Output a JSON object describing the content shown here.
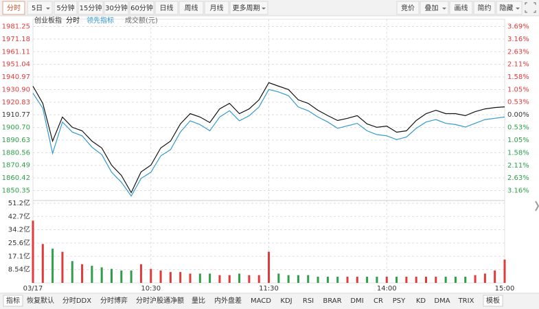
{
  "toolbar": {
    "left": [
      "分时",
      "5日",
      "5分钟",
      "15分钟",
      "30分钟",
      "60分钟",
      "日线",
      "周线",
      "月线",
      "更多周期"
    ],
    "right": [
      "竞价",
      "叠加",
      "画线",
      "简约",
      "隐藏"
    ]
  },
  "chart_data": [
    {
      "type": "line",
      "title": "创业板指",
      "x": [
        0,
        5,
        10,
        15,
        20,
        25,
        30,
        35,
        40,
        45,
        50,
        55,
        60,
        65,
        70,
        75,
        80,
        85,
        90,
        95,
        100,
        105,
        110,
        115,
        120,
        125,
        130,
        135,
        140,
        145,
        150,
        155,
        160,
        165,
        170,
        175,
        180,
        185,
        190,
        195,
        200,
        205,
        210,
        215,
        220,
        225,
        230,
        235,
        240
      ],
      "xlim": [
        0,
        240
      ],
      "ylim": [
        1845,
        1987
      ],
      "yticks": [
        1981.25,
        1971.18,
        1961.11,
        1951.04,
        1940.97,
        {
          "value": 1930.9,
          "label": "1930.90"
        },
        1920.83,
        1910.77,
        {
          "value": 1900.7,
          "label": "1900.70"
        },
        1890.63,
        1880.56,
        1870.49,
        1860.42,
        1850.35
      ],
      "y2lim": [
        -3.44,
        3.99
      ],
      "y2ticks": [
        {
          "value": 3.69,
          "label": "3.69%"
        },
        {
          "value": 3.16,
          "label": "3.16%"
        },
        {
          "value": 2.63,
          "label": "2.63%"
        },
        {
          "value": 2.11,
          "label": "2.11%"
        },
        {
          "value": 1.58,
          "label": "1.58%"
        },
        {
          "value": 1.05,
          "label": "1.05%"
        },
        {
          "value": 0.53,
          "label": "0.53%"
        },
        {
          "value": 0,
          "label": "0.00%"
        },
        {
          "value": -0.53,
          "label": "0.53%"
        },
        {
          "value": -1.05,
          "label": "1.05%"
        },
        {
          "value": -1.58,
          "label": "1.58%"
        },
        {
          "value": -2.11,
          "label": "2.11%"
        },
        {
          "value": -2.63,
          "label": "2.63%"
        },
        {
          "value": -3.16,
          "label": "3.16%"
        }
      ],
      "up_color": "#e03a3a",
      "down_color": "#2e9e4a",
      "series": [
        {
          "name": "分时",
          "color": "#111111",
          "values": [
            1933.6,
            1919.9,
            1889.8,
            1909,
            1900.8,
            1898,
            1889.8,
            1884.3,
            1870.6,
            1862.4,
            1848.7,
            1865.2,
            1870.6,
            1884.3,
            1889.8,
            1903.5,
            1911.7,
            1909,
            1904.6,
            1915.5,
            1919.9,
            1911.7,
            1915.5,
            1922.7,
            1936.4,
            1933.6,
            1930.9,
            1922.7,
            1919.9,
            1914.4,
            1910.1,
            1906.2,
            1908,
            1910.1,
            1903.5,
            1900.8,
            1901.8,
            1896.9,
            1898,
            1906.2,
            1911.7,
            1914.4,
            1911.7,
            1911.7,
            1910.1,
            1913.3,
            1915.5,
            1916.6,
            1917.1
          ]
        },
        {
          "name": "领先指标",
          "color": "#3399cc",
          "values": [
            1928,
            1916,
            1880,
            1905,
            1897,
            1894,
            1885,
            1879,
            1865,
            1857,
            1846,
            1860,
            1865,
            1878,
            1883,
            1897,
            1906,
            1903,
            1898,
            1909,
            1914,
            1906,
            1910,
            1917,
            1931,
            1929,
            1926,
            1917,
            1914,
            1909,
            1905,
            1900,
            1902,
            1904,
            1898,
            1895,
            1894,
            1891,
            1893,
            1900,
            1905,
            1907,
            1904,
            1903,
            1901,
            1904,
            1907,
            1908,
            1909
          ]
        }
      ]
    },
    {
      "type": "bar",
      "title": "成交额(元)",
      "x": [
        0,
        5,
        10,
        15,
        20,
        25,
        30,
        35,
        40,
        45,
        50,
        55,
        60,
        65,
        70,
        75,
        80,
        85,
        90,
        95,
        100,
        105,
        110,
        115,
        120,
        125,
        130,
        135,
        140,
        145,
        150,
        155,
        160,
        165,
        170,
        175,
        180,
        185,
        190,
        195,
        200,
        205,
        210,
        215,
        220,
        225,
        230,
        235,
        240
      ],
      "xlim": [
        0,
        240
      ],
      "xticks": [
        {
          "value": 0,
          "label": "03/17"
        },
        {
          "value": 60,
          "label": "10:30"
        },
        {
          "value": 120,
          "label": "11:30"
        },
        {
          "value": 180,
          "label": "14:00"
        },
        {
          "value": 240,
          "label": "15:00"
        }
      ],
      "ylim": [
        0,
        51.2
      ],
      "yticks": [
        {
          "value": 51.2,
          "label": "51.2亿"
        },
        {
          "value": 42.7,
          "label": "42.7亿"
        },
        {
          "value": 34.2,
          "label": "34.2亿"
        },
        {
          "value": 25.6,
          "label": "25.6亿"
        },
        {
          "value": 17.1,
          "label": "17.1亿"
        },
        {
          "value": 8.54,
          "label": "8.54亿"
        }
      ],
      "values": [
        40,
        25,
        22,
        20,
        14,
        12,
        11,
        10,
        9,
        8,
        8,
        12,
        9,
        8,
        7,
        7,
        6,
        6,
        6,
        5,
        5,
        6,
        5,
        5,
        20,
        6,
        5,
        5,
        5,
        4,
        4,
        4,
        4,
        4,
        4,
        4,
        4,
        4,
        4,
        4,
        4,
        4,
        4,
        4,
        4,
        5,
        6,
        8,
        15
      ],
      "colors": [
        "#e03a3a",
        "#e03a3a",
        "#2e9e4a",
        "#e03a3a",
        "#2e9e4a",
        "#e03a3a",
        "#2e9e4a",
        "#2e9e4a",
        "#2e9e4a",
        "#2e9e4a",
        "#2e9e4a",
        "#e03a3a",
        "#e03a3a",
        "#e03a3a",
        "#e03a3a",
        "#e03a3a",
        "#e03a3a",
        "#2e9e4a",
        "#2e9e4a",
        "#e03a3a",
        "#e03a3a",
        "#2e9e4a",
        "#e03a3a",
        "#e03a3a",
        "#e03a3a",
        "#2e9e4a",
        "#2e9e4a",
        "#2e9e4a",
        "#2e9e4a",
        "#2e9e4a",
        "#2e9e4a",
        "#2e9e4a",
        "#e03a3a",
        "#e03a3a",
        "#2e9e4a",
        "#2e9e4a",
        "#e03a3a",
        "#2e9e4a",
        "#e03a3a",
        "#e03a3a",
        "#e03a3a",
        "#e03a3a",
        "#2e9e4a",
        "#2e9e4a",
        "#2e9e4a",
        "#e03a3a",
        "#e03a3a",
        "#e03a3a",
        "#e03a3a"
      ]
    }
  ],
  "tabs": [
    "指标",
    "恢复默认",
    "分时DDX",
    "分时博弈",
    "分时沪股通净额",
    "量比",
    "内外盘差",
    "MACD",
    "KDJ",
    "RSI",
    "BRAR",
    "DMI",
    "CR",
    "PSY",
    "KD",
    "DMA",
    "TRIX",
    "模板"
  ]
}
